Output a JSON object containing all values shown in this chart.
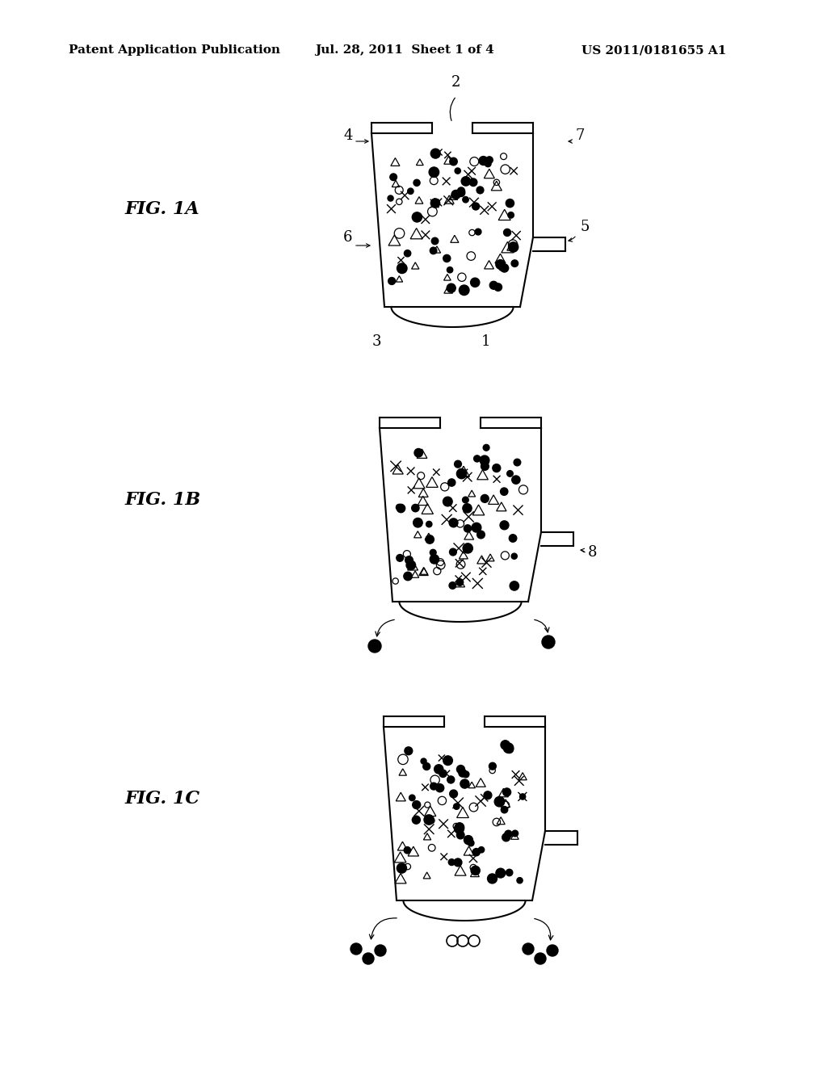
{
  "header_left": "Patent Application Publication",
  "header_mid": "Jul. 28, 2011  Sheet 1 of 4",
  "header_right": "US 2011/0181655 A1",
  "header_fontsize": 11,
  "bg_color": "#ffffff",
  "fig_labels": [
    "FIG. 1A",
    "FIG. 1B",
    "FIG. 1C"
  ],
  "fig_label_fontsize": 16
}
